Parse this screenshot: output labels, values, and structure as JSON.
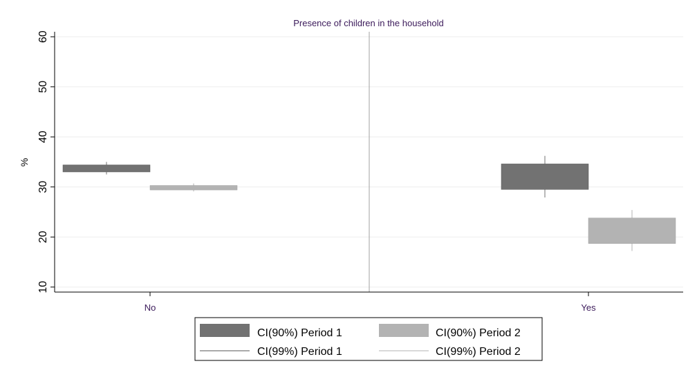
{
  "chart_data": {
    "type": "box",
    "title": "Presence of children in the household",
    "xlabel": "",
    "ylabel": "%",
    "ylim": [
      9,
      61
    ],
    "yticks": [
      10,
      20,
      30,
      40,
      50,
      60
    ],
    "categories": [
      "No",
      "Yes"
    ],
    "grid": true,
    "legend_position": "bottom",
    "colors": {
      "period1": "#727272",
      "period2": "#b3b3b3",
      "grid": "#eeeeee",
      "axis": "#000000",
      "divider": "#a0a0a0"
    },
    "series": [
      {
        "name": "Period 1",
        "values": [
          {
            "category": "No",
            "ci90_low": 33.0,
            "ci90_high": 34.4,
            "ci99_low": 32.5,
            "ci99_high": 35.0
          },
          {
            "category": "Yes",
            "ci90_low": 29.5,
            "ci90_high": 34.6,
            "ci99_low": 27.9,
            "ci99_high": 36.2
          }
        ]
      },
      {
        "name": "Period 2",
        "values": [
          {
            "category": "No",
            "ci90_low": 29.4,
            "ci90_high": 30.3,
            "ci99_low": 29.1,
            "ci99_high": 30.7
          },
          {
            "category": "Yes",
            "ci90_low": 18.7,
            "ci90_high": 23.8,
            "ci99_low": 17.2,
            "ci99_high": 25.4
          }
        ]
      }
    ],
    "legend": [
      "CI(90%) Period 1",
      "CI(90%) Period 2",
      "CI(99%) Period 1",
      "CI(99%) Period 2"
    ]
  }
}
